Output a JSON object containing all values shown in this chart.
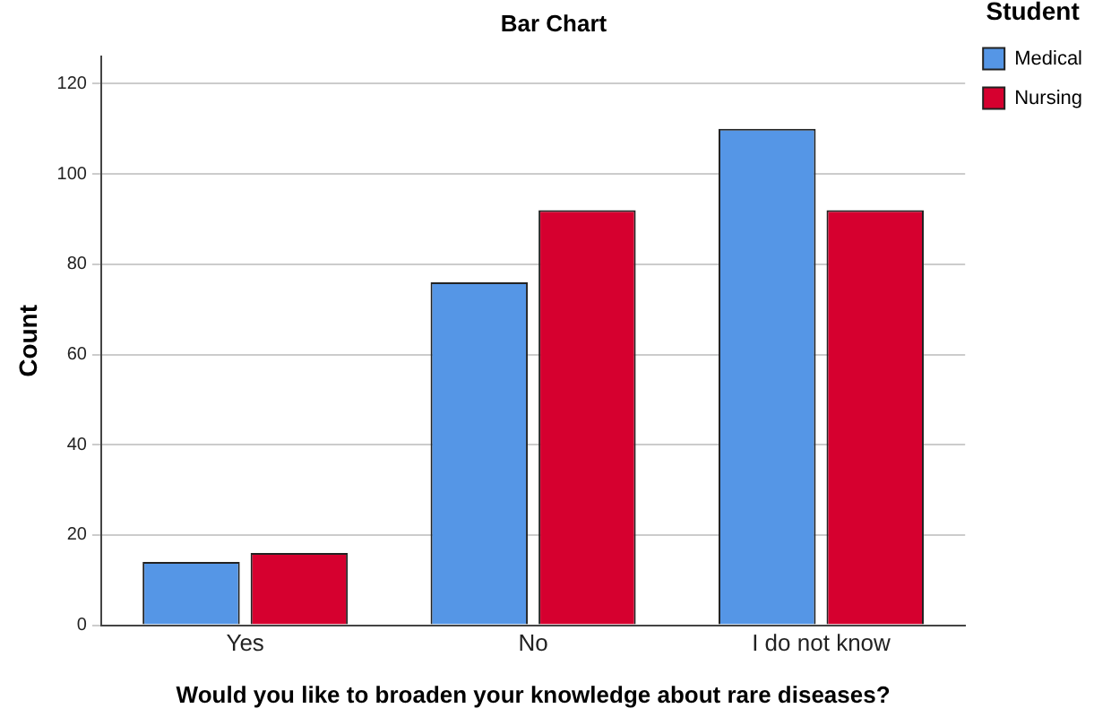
{
  "chart_data": {
    "type": "bar",
    "title": "Bar Chart",
    "xlabel": "Would you like to broaden your knowledge about rare diseases?",
    "ylabel": "Count",
    "legend_title": "Student",
    "categories": [
      "Yes",
      "No",
      "I do not know"
    ],
    "series": [
      {
        "name": "Medical",
        "color": "#5596e6",
        "values": [
          14,
          76,
          110
        ]
      },
      {
        "name": "Nursing",
        "color": "#d6002f",
        "values": [
          16,
          92,
          92
        ]
      }
    ],
    "ylim": [
      0,
      126
    ],
    "yticks": [
      0,
      20,
      40,
      60,
      80,
      100,
      120
    ],
    "grid": "y",
    "legend": "top right"
  }
}
